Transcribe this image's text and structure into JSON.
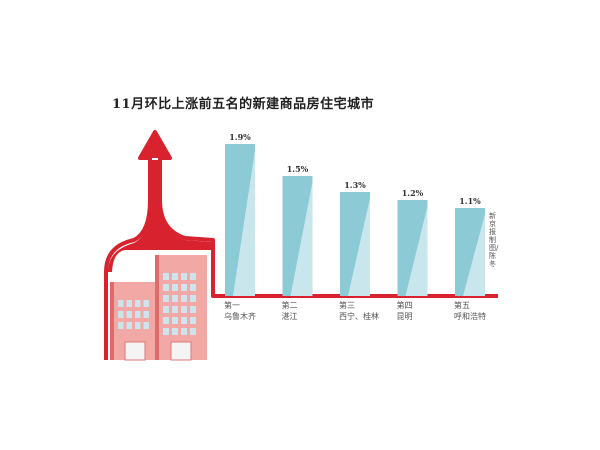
{
  "chart_data": {
    "type": "bar",
    "title": "11月环比上涨前五名的新建商品房住宅城市",
    "categories": [
      {
        "rank": "第一",
        "city": "乌鲁木齐"
      },
      {
        "rank": "第二",
        "city": "湛江"
      },
      {
        "rank": "第三",
        "city": "西宁、桂林"
      },
      {
        "rank": "第四",
        "city": "昆明"
      },
      {
        "rank": "第五",
        "city": "呼和浩特"
      }
    ],
    "values": [
      1.9,
      1.5,
      1.3,
      1.2,
      1.1
    ],
    "value_labels": [
      "1.9%",
      "1.5%",
      "1.3%",
      "1.2%",
      "1.1%"
    ],
    "unit": "%",
    "grid": false,
    "colors": {
      "bar": "#8ccbd6",
      "bar_light": "#c9e6ec",
      "arrow": "#d8232f",
      "building": "#f2a9a5",
      "window": "#cfe3ec"
    }
  },
  "credit": "新京报制图/陈冬"
}
